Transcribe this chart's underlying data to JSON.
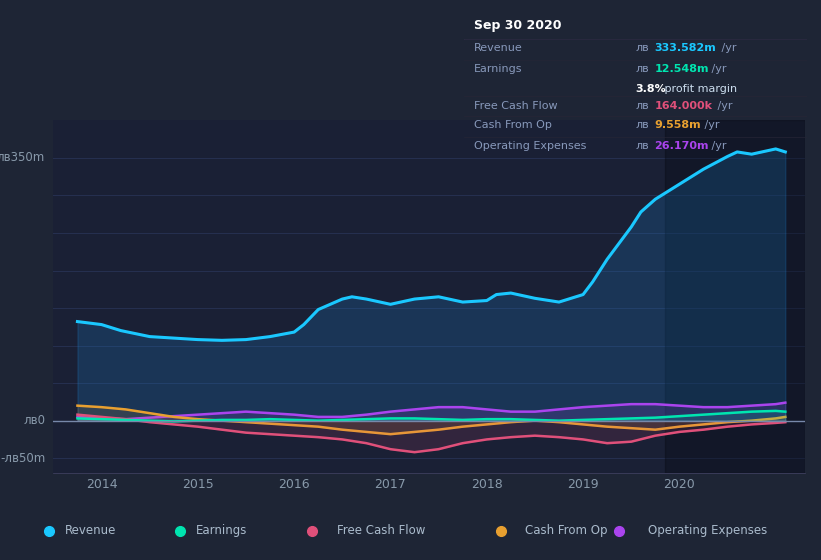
{
  "background_color": "#1e2535",
  "plot_bg_color": "#1a2035",
  "title": "Sep 30 2020",
  "ylabel_top": "лв350m",
  "ylabel_zero": "лв0",
  "ylabel_neg": "-лв50m",
  "x_ticks": [
    2014,
    2015,
    2016,
    2017,
    2018,
    2019,
    2020
  ],
  "x_min": 2013.5,
  "x_max": 2021.3,
  "y_min": -70,
  "y_max": 400,
  "shaded_x_start": 2019.85,
  "grid_lines_y": [
    350,
    300,
    250,
    200,
    150,
    100,
    50,
    0,
    -50
  ],
  "grid_color": "#263050",
  "zero_line_color": "#8899aa",
  "legend_items": [
    {
      "label": "Revenue",
      "color": "#1ac8ff"
    },
    {
      "label": "Earnings",
      "color": "#00e5b0"
    },
    {
      "label": "Free Cash Flow",
      "color": "#e0507a"
    },
    {
      "label": "Cash From Op",
      "color": "#e8a030"
    },
    {
      "label": "Operating Expenses",
      "color": "#aa44ee"
    }
  ],
  "tooltip_bg": "#0a0c14",
  "tooltip_border": "#333344",
  "revenue_x": [
    2013.75,
    2014.0,
    2014.1,
    2014.2,
    2014.5,
    2014.75,
    2015.0,
    2015.25,
    2015.5,
    2015.75,
    2016.0,
    2016.1,
    2016.25,
    2016.5,
    2016.6,
    2016.75,
    2017.0,
    2017.25,
    2017.5,
    2017.75,
    2018.0,
    2018.1,
    2018.25,
    2018.5,
    2018.75,
    2019.0,
    2019.1,
    2019.25,
    2019.5,
    2019.6,
    2019.75,
    2020.0,
    2020.25,
    2020.5,
    2020.6,
    2020.75,
    2021.0,
    2021.1
  ],
  "revenue_y": [
    132,
    128,
    124,
    120,
    112,
    110,
    108,
    107,
    108,
    112,
    118,
    128,
    148,
    162,
    165,
    162,
    155,
    162,
    165,
    158,
    160,
    168,
    170,
    163,
    158,
    168,
    185,
    215,
    258,
    278,
    295,
    315,
    335,
    352,
    358,
    355,
    362,
    358
  ],
  "earnings_x": [
    2013.75,
    2014.0,
    2014.25,
    2014.5,
    2014.75,
    2015.0,
    2015.25,
    2015.5,
    2015.75,
    2016.0,
    2016.25,
    2016.5,
    2016.75,
    2017.0,
    2017.25,
    2017.5,
    2017.75,
    2018.0,
    2018.25,
    2018.5,
    2018.75,
    2019.0,
    2019.25,
    2019.5,
    2019.75,
    2020.0,
    2020.25,
    2020.5,
    2020.75,
    2021.0,
    2021.1
  ],
  "earnings_y": [
    3,
    2,
    1,
    0,
    -1,
    0,
    1,
    1,
    2,
    1,
    0,
    1,
    2,
    3,
    3,
    2,
    1,
    2,
    2,
    1,
    0,
    1,
    2,
    3,
    4,
    6,
    8,
    10,
    12,
    13,
    12
  ],
  "fcf_x": [
    2013.75,
    2014.0,
    2014.25,
    2014.5,
    2014.75,
    2015.0,
    2015.25,
    2015.5,
    2015.75,
    2016.0,
    2016.25,
    2016.5,
    2016.75,
    2017.0,
    2017.25,
    2017.5,
    2017.75,
    2018.0,
    2018.25,
    2018.5,
    2018.75,
    2019.0,
    2019.25,
    2019.5,
    2019.75,
    2020.0,
    2020.25,
    2020.5,
    2020.75,
    2021.0,
    2021.1
  ],
  "fcf_y": [
    8,
    5,
    2,
    -2,
    -5,
    -8,
    -12,
    -16,
    -18,
    -20,
    -22,
    -25,
    -30,
    -38,
    -42,
    -38,
    -30,
    -25,
    -22,
    -20,
    -22,
    -25,
    -30,
    -28,
    -20,
    -15,
    -12,
    -8,
    -5,
    -3,
    -2
  ],
  "cashop_x": [
    2013.75,
    2014.0,
    2014.25,
    2014.5,
    2014.75,
    2015.0,
    2015.25,
    2015.5,
    2015.75,
    2016.0,
    2016.25,
    2016.5,
    2016.75,
    2017.0,
    2017.25,
    2017.5,
    2017.75,
    2018.0,
    2018.25,
    2018.5,
    2018.75,
    2019.0,
    2019.25,
    2019.5,
    2019.75,
    2020.0,
    2020.25,
    2020.5,
    2020.75,
    2021.0,
    2021.1
  ],
  "cashop_y": [
    20,
    18,
    15,
    10,
    5,
    2,
    0,
    -2,
    -4,
    -6,
    -8,
    -12,
    -15,
    -18,
    -15,
    -12,
    -8,
    -5,
    -2,
    0,
    -2,
    -5,
    -8,
    -10,
    -12,
    -8,
    -5,
    -2,
    0,
    3,
    5
  ],
  "opex_x": [
    2013.75,
    2014.0,
    2014.25,
    2014.5,
    2014.75,
    2015.0,
    2015.25,
    2015.5,
    2015.75,
    2016.0,
    2016.25,
    2016.5,
    2016.75,
    2017.0,
    2017.25,
    2017.5,
    2017.75,
    2018.0,
    2018.25,
    2018.5,
    2018.75,
    2019.0,
    2019.25,
    2019.5,
    2019.75,
    2020.0,
    2020.25,
    2020.5,
    2020.75,
    2021.0,
    2021.1
  ],
  "opex_y": [
    5,
    3,
    2,
    4,
    6,
    8,
    10,
    12,
    10,
    8,
    5,
    5,
    8,
    12,
    15,
    18,
    18,
    15,
    12,
    12,
    15,
    18,
    20,
    22,
    22,
    20,
    18,
    18,
    20,
    22,
    24
  ]
}
